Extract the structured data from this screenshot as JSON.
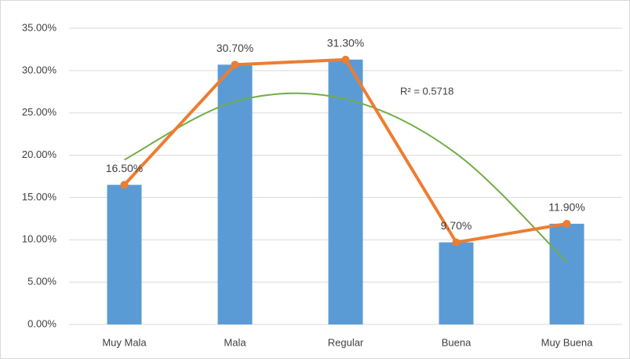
{
  "chart_data": {
    "type": "bar-line",
    "categories": [
      "Muy Mala",
      "Mala",
      "Regular",
      "Buena",
      "Muy Buena"
    ],
    "values": [
      16.5,
      30.7,
      31.3,
      9.7,
      11.9
    ],
    "value_labels": [
      "16.50%",
      "30.70%",
      "31.30%",
      "9.70%",
      "11.90%"
    ],
    "bar_color": "#5b9bd5",
    "line_color": "#ed7d31",
    "trendline": {
      "values": [
        19.46,
        26.34,
        26.62,
        20.2,
        7.38
      ],
      "color": "#70ad47",
      "annotation": "R² = 0.5718"
    },
    "ylim": [
      0,
      35
    ],
    "yticks": [
      {
        "value": 0,
        "label": "0.00%"
      },
      {
        "value": 5,
        "label": "5.00%"
      },
      {
        "value": 10,
        "label": "10.00%"
      },
      {
        "value": 15,
        "label": "15.00%"
      },
      {
        "value": 20,
        "label": "20.00%"
      },
      {
        "value": 25,
        "label": "25.00%"
      },
      {
        "value": 30,
        "label": "30.00%"
      },
      {
        "value": 35,
        "label": "35.00%"
      }
    ],
    "grid": true
  }
}
